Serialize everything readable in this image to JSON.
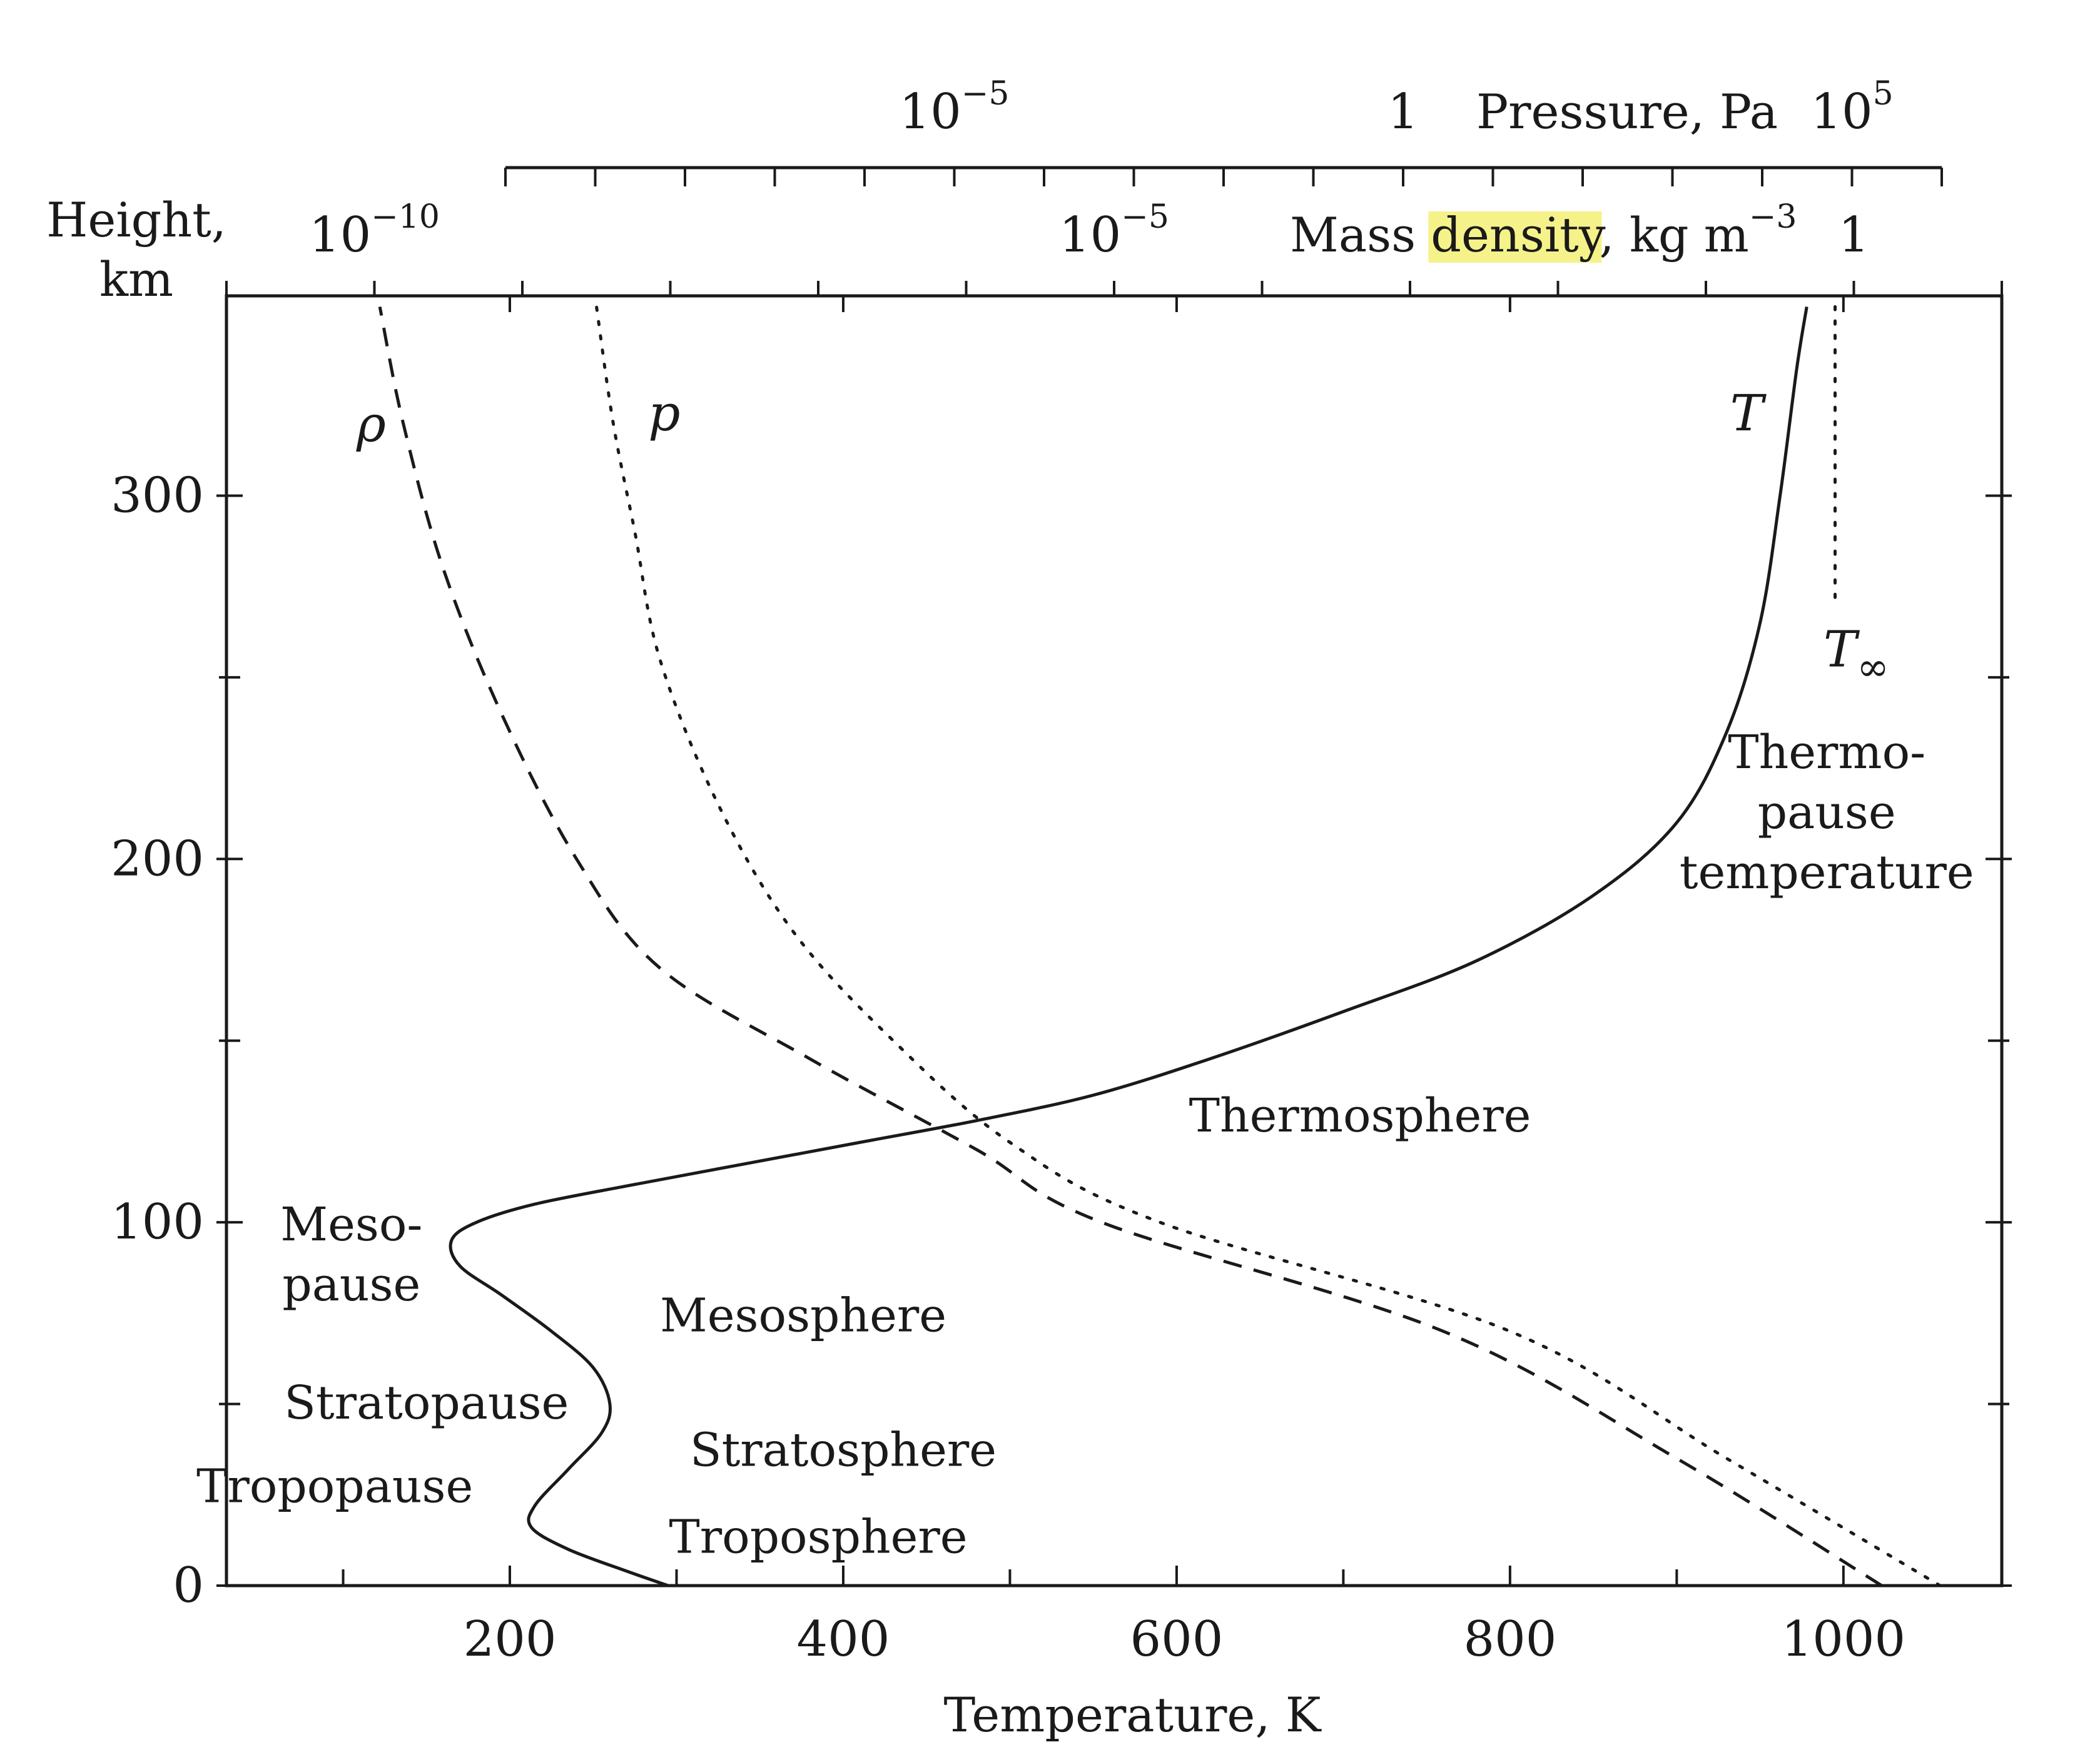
{
  "chart_data": {
    "type": "line",
    "height_label_line1": "Height,",
    "height_label_line2": "km",
    "xlabel": "Temperature, K",
    "density_axis_label": "Mass density, kg m",
    "density_axis_label_sup": "−3",
    "density_highlight_word": "density",
    "pressure_axis_label": "Pressure, Pa",
    "highlight_color": "#f6f28a",
    "xlim": [
      30,
      1095
    ],
    "ylim": [
      0,
      355
    ],
    "x_ticks": [
      {
        "value": 200,
        "label": "200"
      },
      {
        "value": 400,
        "label": "400"
      },
      {
        "value": 600,
        "label": "600"
      },
      {
        "value": 800,
        "label": "800"
      },
      {
        "value": 1000,
        "label": "1000"
      }
    ],
    "x_minor_ticks": [
      100,
      300,
      500,
      700,
      900
    ],
    "y_ticks": [
      {
        "value": 0,
        "label": "0"
      },
      {
        "value": 100,
        "label": "100"
      },
      {
        "value": 200,
        "label": "200"
      },
      {
        "value": 300,
        "label": "300"
      }
    ],
    "y_minor_ticks": [
      50,
      150,
      250
    ],
    "density_ticks": [
      {
        "value": -10,
        "base": "10",
        "exp": "−10"
      },
      {
        "value": -5,
        "base": "10",
        "exp": "−5"
      },
      {
        "value": 0,
        "base": "1",
        "exp": ""
      }
    ],
    "density_range": [
      -11,
      1
    ],
    "pressure_ticks": [
      {
        "value": -5,
        "base": "10",
        "exp": "−5"
      },
      {
        "value": 0,
        "base": "1",
        "exp": ""
      },
      {
        "value": 5,
        "base": "10",
        "exp": "5"
      }
    ],
    "pressure_range": [
      -10,
      6
    ],
    "series": [
      {
        "name": "T",
        "style": "solid",
        "points": [
          [
            295,
            0
          ],
          [
            270,
            4
          ],
          [
            235,
            10
          ],
          [
            213,
            16
          ],
          [
            215,
            22
          ],
          [
            235,
            32
          ],
          [
            255,
            42
          ],
          [
            260,
            50
          ],
          [
            250,
            60
          ],
          [
            225,
            70
          ],
          [
            195,
            80
          ],
          [
            170,
            88
          ],
          [
            165,
            95
          ],
          [
            180,
            100
          ],
          [
            215,
            105
          ],
          [
            270,
            110
          ],
          [
            340,
            116
          ],
          [
            410,
            122
          ],
          [
            480,
            128
          ],
          [
            550,
            135
          ],
          [
            620,
            145
          ],
          [
            700,
            158
          ],
          [
            780,
            172
          ],
          [
            850,
            190
          ],
          [
            900,
            210
          ],
          [
            930,
            235
          ],
          [
            950,
            265
          ],
          [
            962,
            300
          ],
          [
            972,
            335
          ],
          [
            978,
            352
          ]
        ]
      },
      {
        "name": "ρ",
        "style": "dashed",
        "points": [
          [
            1023,
            0
          ],
          [
            900,
            35
          ],
          [
            760,
            70
          ],
          [
            555,
            100
          ],
          [
            480,
            120
          ],
          [
            380,
            145
          ],
          [
            290,
            170
          ],
          [
            240,
            200
          ],
          [
            195,
            240
          ],
          [
            160,
            280
          ],
          [
            136,
            320
          ],
          [
            122,
            352
          ]
        ]
      },
      {
        "name": "p",
        "style": "dotted",
        "points": [
          [
            1058,
            0
          ],
          [
            930,
            35
          ],
          [
            800,
            70
          ],
          [
            590,
            100
          ],
          [
            500,
            122
          ],
          [
            430,
            150
          ],
          [
            370,
            180
          ],
          [
            325,
            215
          ],
          [
            290,
            255
          ],
          [
            275,
            290
          ],
          [
            262,
            320
          ],
          [
            252,
            352
          ]
        ]
      },
      {
        "name": "T∞",
        "style": "dotted",
        "points": [
          [
            995,
            272
          ],
          [
            995,
            352
          ]
        ]
      }
    ],
    "curve_labels": [
      {
        "series": "ρ",
        "text": "ρ",
        "at": [
          108,
          315
        ]
      },
      {
        "series": "p",
        "text": "p",
        "at": [
          283,
          318
        ]
      },
      {
        "series": "T",
        "text": "T",
        "at": [
          932,
          318
        ]
      },
      {
        "series": "T∞",
        "text": "T",
        "sub": "∞",
        "at": [
          988,
          253
        ]
      }
    ],
    "annotations": [
      {
        "lines": [
          "Thermo-",
          "pause",
          "temperature"
        ],
        "at": [
          990,
          225
        ]
      },
      {
        "lines": [
          "Thermosphere"
        ],
        "at": [
          710,
          125
        ]
      },
      {
        "lines": [
          "Meso-",
          "pause"
        ],
        "at": [
          105,
          95
        ]
      },
      {
        "lines": [
          "Mesosphere"
        ],
        "at": [
          376,
          70
        ]
      },
      {
        "lines": [
          "Stratopause"
        ],
        "at": [
          150,
          46
        ]
      },
      {
        "lines": [
          "Stratosphere"
        ],
        "at": [
          400,
          33
        ]
      },
      {
        "lines": [
          "Tropopause"
        ],
        "at": [
          95,
          23
        ]
      },
      {
        "lines": [
          "Troposphere"
        ],
        "at": [
          385,
          9
        ]
      }
    ]
  }
}
